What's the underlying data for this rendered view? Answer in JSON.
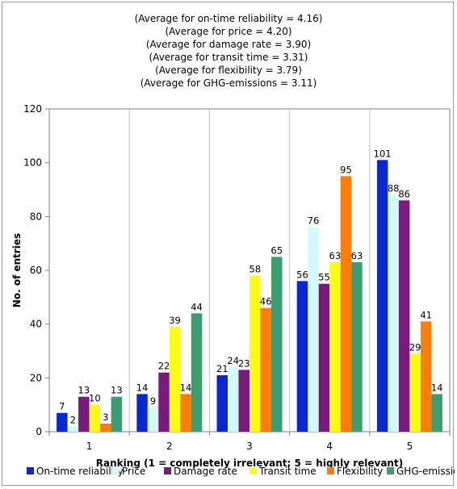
{
  "chart_data": {
    "type": "bar",
    "title": "",
    "annotations": [
      "(Average for on-time reliability = 4.16)",
      "(Average for price = 4.20)",
      "(Average for damage rate = 3.90)",
      "(Average for transit time = 3.31)",
      "(Average for flexibility = 3.79)",
      "(Average for GHG-emissions = 3.11)"
    ],
    "xlabel": "Ranking (1 = completely irrelevant; 5 = highly relevant)",
    "ylabel": "No. of entries",
    "ylim": [
      0,
      120
    ],
    "yticks": [
      0,
      20,
      40,
      60,
      80,
      100,
      120
    ],
    "categories": [
      "1",
      "2",
      "3",
      "4",
      "5"
    ],
    "grid": "vertical lines between categories",
    "legend_position": "bottom",
    "series": [
      {
        "name": "On-time reliability",
        "color": "#0a28d2",
        "values": [
          7,
          14,
          21,
          56,
          101
        ]
      },
      {
        "name": "Price",
        "color": "#d4f9fc",
        "values": [
          2,
          9,
          24,
          76,
          88
        ]
      },
      {
        "name": "Damage rate",
        "color": "#7a1a7e",
        "values": [
          13,
          22,
          23,
          55,
          86
        ]
      },
      {
        "name": "Transit time",
        "color": "#fbfb14",
        "values": [
          10,
          39,
          58,
          63,
          29
        ]
      },
      {
        "name": "Flexibility",
        "color": "#fb7d0a",
        "values": [
          3,
          14,
          46,
          95,
          41
        ]
      },
      {
        "name": "GHG-emissions",
        "color": "#3c9c72",
        "values": [
          13,
          44,
          65,
          63,
          14
        ]
      }
    ]
  }
}
